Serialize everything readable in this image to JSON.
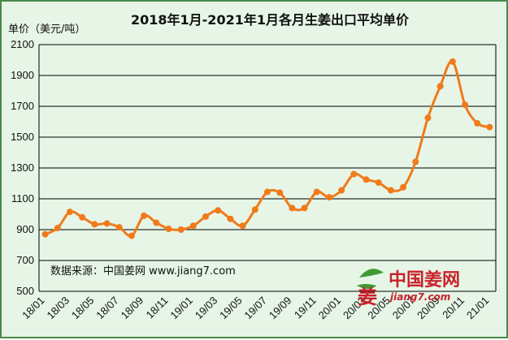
{
  "chart_data": {
    "type": "line",
    "title": "2018年1月-2021年1月各月生姜出口平均单价",
    "ylabel": "单价（美元/吨）",
    "xlabel": "",
    "ylim": [
      500,
      2100
    ],
    "yticks": [
      500,
      700,
      900,
      1100,
      1300,
      1500,
      1700,
      1900,
      2100
    ],
    "grid": true,
    "x": [
      "18/01",
      "18/02",
      "18/03",
      "18/04",
      "18/05",
      "18/06",
      "18/07",
      "18/08",
      "18/09",
      "18/10",
      "18/11",
      "18/12",
      "19/01",
      "19/02",
      "19/03",
      "19/04",
      "19/05",
      "19/06",
      "19/07",
      "19/08",
      "19/09",
      "19/10",
      "19/11",
      "19/12",
      "20/01",
      "20/02",
      "20/03",
      "20/04",
      "20/05",
      "20/06",
      "20/07",
      "20/08",
      "20/09",
      "20/10",
      "20/11",
      "20/12",
      "21/01"
    ],
    "xtick_labels": [
      "18/01",
      "18/03",
      "18/05",
      "18/07",
      "18/09",
      "18/11",
      "19/01",
      "19/03",
      "19/05",
      "19/07",
      "19/09",
      "19/11",
      "20/01",
      "20/03",
      "20/05",
      "20/07",
      "20/09",
      "20/11",
      "21/01"
    ],
    "series": [
      {
        "color": "#f07a1a",
        "values": [
          870,
          910,
          1015,
          980,
          935,
          940,
          915,
          860,
          990,
          945,
          905,
          900,
          925,
          985,
          1025,
          970,
          925,
          1030,
          1145,
          1140,
          1040,
          1040,
          1145,
          1110,
          1155,
          1260,
          1225,
          1205,
          1155,
          1175,
          1340,
          1625,
          1830,
          1990,
          1710,
          1590,
          1565
        ]
      }
    ],
    "source_note": "数据来源：中国姜网 www.jiang7.com"
  },
  "logo": {
    "name": "中国姜网",
    "url": "jiang7.com"
  },
  "colors": {
    "background": "#e6f5e6",
    "border": "#4a8a4a",
    "line": "#f07a1a",
    "grid": "#000000",
    "logo": "#c8232c"
  }
}
